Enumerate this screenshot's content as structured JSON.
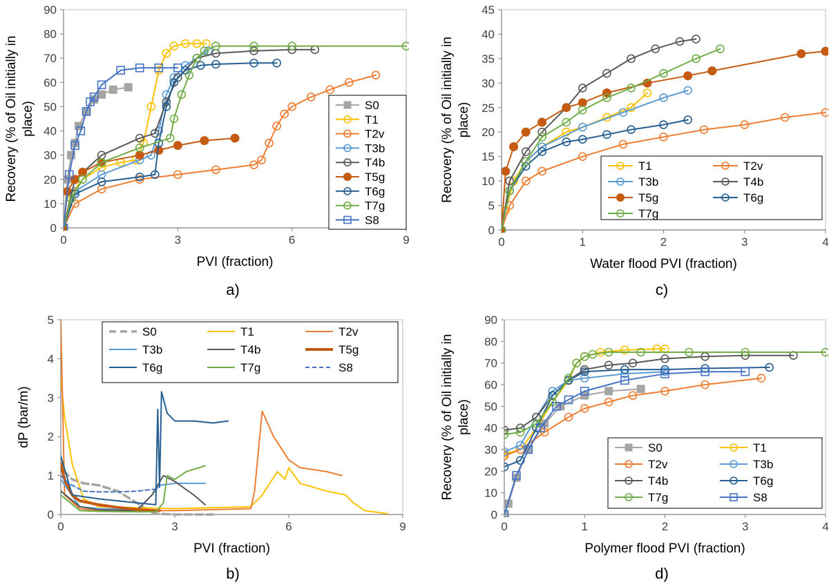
{
  "figure": {
    "panel_labels": [
      "a)",
      "b)",
      "c)",
      "d)"
    ]
  },
  "styles": {
    "S0": {
      "color": "#A5A5A5",
      "marker": "square-filled"
    },
    "T1": {
      "color": "#FFC000",
      "marker": "circle-open"
    },
    "T2v": {
      "color": "#ED7D31",
      "marker": "circle-open"
    },
    "T3b": {
      "color": "#5B9BD5",
      "marker": "circle-open"
    },
    "T4b": {
      "color": "#595959",
      "marker": "circle-open"
    },
    "T5g": {
      "color": "#C55A11",
      "marker": "circle-filled"
    },
    "T6g": {
      "color": "#255E91",
      "marker": "circle-open"
    },
    "T7g": {
      "color": "#70AD47",
      "marker": "circle-open"
    },
    "S8": {
      "color": "#4472C4",
      "marker": "square-open"
    }
  },
  "chart_data": [
    {
      "panel": "a)",
      "type": "line",
      "xlabel": "PVI (fraction)",
      "ylabel": "Recovery (% of Oil initially in place)",
      "xlim": [
        0,
        9
      ],
      "ylim": [
        0,
        90
      ],
      "xticks": [
        0,
        3,
        6,
        9
      ],
      "yticks": [
        0,
        10,
        20,
        30,
        40,
        50,
        60,
        70,
        80,
        90
      ],
      "legend": [
        "S0",
        "T1",
        "T2v",
        "T3b",
        "T4b",
        "T5g",
        "T6g",
        "T7g",
        "S8"
      ],
      "series": [
        {
          "name": "S0",
          "x": [
            0,
            0.1,
            0.2,
            0.3,
            0.4,
            0.6,
            0.8,
            1.0,
            1.3,
            1.7
          ],
          "y": [
            0,
            20,
            30,
            35,
            42,
            48,
            53,
            55,
            57,
            58
          ]
        },
        {
          "name": "T1",
          "x": [
            0,
            0.2,
            0.5,
            1.0,
            1.5,
            1.9,
            2.1,
            2.3,
            2.5,
            2.7,
            2.9,
            3.2,
            3.5,
            3.75
          ],
          "y": [
            0,
            14,
            20,
            25,
            27,
            28,
            35,
            50,
            65,
            72,
            75,
            76,
            76,
            76
          ]
        },
        {
          "name": "T2v",
          "x": [
            0,
            0.3,
            1.0,
            2.0,
            3.0,
            4.0,
            5.0,
            5.2,
            5.4,
            5.6,
            5.8,
            6.0,
            6.5,
            7.0,
            7.5,
            8.2
          ],
          "y": [
            0,
            10,
            16,
            20,
            22,
            24,
            26,
            28,
            35,
            42,
            47,
            50,
            54,
            57,
            60,
            63
          ]
        },
        {
          "name": "T3b",
          "x": [
            0,
            0.3,
            1.0,
            2.0,
            2.3,
            2.5,
            2.7,
            2.9,
            3.2,
            3.5,
            3.8
          ],
          "y": [
            0,
            15,
            22,
            28,
            30,
            40,
            55,
            62,
            67,
            70,
            73
          ]
        },
        {
          "name": "T4b",
          "x": [
            0,
            0.3,
            1.0,
            2.0,
            2.4,
            2.7,
            3.0,
            3.5,
            4.0,
            5.0,
            6.0,
            6.6
          ],
          "y": [
            0,
            20,
            30,
            37,
            39,
            52,
            62,
            70,
            72,
            73,
            73.5,
            73.5
          ]
        },
        {
          "name": "T5g",
          "x": [
            0,
            0.1,
            0.3,
            0.5,
            1.0,
            2.0,
            2.5,
            3.0,
            3.7,
            4.5
          ],
          "y": [
            0,
            15,
            20,
            23,
            27,
            30,
            32,
            34,
            36,
            37
          ]
        },
        {
          "name": "T6g",
          "x": [
            0,
            0.3,
            1.0,
            2.0,
            2.4,
            2.5,
            2.7,
            2.9,
            3.2,
            3.6,
            4.0,
            5.0,
            5.6
          ],
          "y": [
            0,
            14,
            19,
            21,
            22,
            35,
            50,
            60,
            65,
            67,
            67.5,
            68,
            68
          ]
        },
        {
          "name": "T7g",
          "x": [
            0,
            0.2,
            0.5,
            1.0,
            2.0,
            2.8,
            2.9,
            3.1,
            3.3,
            3.5,
            3.7,
            4.0,
            5.0,
            6.0,
            9.0
          ],
          "y": [
            0,
            12,
            20,
            27,
            33,
            37,
            45,
            55,
            63,
            70,
            73,
            75,
            75,
            75,
            75
          ]
        },
        {
          "name": "S8",
          "x": [
            0,
            0.15,
            0.3,
            0.45,
            0.6,
            0.7,
            0.8,
            1.0,
            1.5,
            2.0,
            2.5,
            3.0
          ],
          "y": [
            0,
            22,
            34,
            40,
            48,
            52,
            54,
            59,
            65,
            66,
            66,
            66
          ]
        }
      ]
    },
    {
      "panel": "b)",
      "type": "line",
      "xlabel": "PVI (fraction)",
      "ylabel": "dP (bar/m)",
      "xlim": [
        0,
        9
      ],
      "ylim": [
        0,
        5
      ],
      "xticks": [
        0,
        3,
        6,
        9
      ],
      "yticks": [
        0,
        1,
        2,
        3,
        4,
        5
      ],
      "legend": [
        "S0",
        "T1",
        "T2v",
        "T3b",
        "T4b",
        "T5g",
        "T6g",
        "T7g",
        "S8"
      ],
      "series": [
        {
          "name": "S0",
          "x": [
            0,
            0.1,
            0.3,
            0.6,
            1.0,
            1.5,
            2.0,
            2.3,
            2.5,
            3.0,
            4.0
          ],
          "y": [
            1.4,
            1.1,
            0.9,
            0.8,
            0.75,
            0.6,
            0.3,
            0.1,
            0.02,
            0,
            0
          ]
        },
        {
          "name": "T1",
          "x": [
            0,
            0.1,
            0.3,
            0.6,
            1.0,
            3.0,
            5.0,
            5.3,
            5.7,
            5.9,
            6.0,
            6.3,
            7.0,
            7.5,
            7.7,
            8.0,
            8.6
          ],
          "y": [
            3.5,
            2.5,
            1.3,
            0.4,
            0.2,
            0.15,
            0.2,
            0.5,
            1.1,
            0.9,
            1.2,
            0.8,
            0.6,
            0.5,
            0.3,
            0.1,
            0.02
          ]
        },
        {
          "name": "T2v",
          "x": [
            0,
            0.1,
            0.5,
            1.0,
            3.0,
            5.0,
            5.1,
            5.3,
            5.6,
            6.0,
            6.3,
            7.0,
            7.4
          ],
          "y": [
            5.0,
            0.5,
            0.15,
            0.1,
            0.1,
            0.15,
            0.6,
            2.65,
            2.0,
            1.4,
            1.2,
            1.1,
            1.0
          ]
        },
        {
          "name": "T3b",
          "x": [
            0,
            0.5,
            1.0,
            2.0,
            2.4,
            2.6,
            3.0,
            3.8
          ],
          "y": [
            0.9,
            0.2,
            0.15,
            0.12,
            0.5,
            0.75,
            0.8,
            0.8
          ]
        },
        {
          "name": "T4b",
          "x": [
            0,
            0.5,
            1.0,
            2.0,
            2.4,
            2.7,
            3.0,
            3.5,
            3.8
          ],
          "y": [
            0.6,
            0.2,
            0.12,
            0.1,
            0.5,
            1.0,
            0.85,
            0.5,
            0.25
          ]
        },
        {
          "name": "T5g",
          "x": [
            0,
            0.1,
            0.3,
            0.5,
            1.0,
            1.5,
            2.0,
            2.5,
            2.6
          ],
          "y": [
            1.3,
            0.9,
            0.5,
            0.35,
            0.25,
            0.18,
            0.13,
            0.1,
            0.1
          ]
        },
        {
          "name": "T6g",
          "x": [
            0,
            0.3,
            1.0,
            2.0,
            2.5,
            2.55,
            2.6,
            2.65,
            2.8,
            3.0,
            3.5,
            4.0,
            4.4
          ],
          "y": [
            1.5,
            0.5,
            0.4,
            0.3,
            0.25,
            2.7,
            0.7,
            3.15,
            2.6,
            2.4,
            2.4,
            2.35,
            2.4
          ]
        },
        {
          "name": "T7g",
          "x": [
            0,
            0.5,
            1.0,
            2.0,
            2.5,
            2.7,
            2.8,
            3.0,
            3.3,
            3.8
          ],
          "y": [
            0.5,
            0.1,
            0.08,
            0.07,
            0.07,
            0.3,
            1.0,
            0.9,
            1.1,
            1.25
          ]
        },
        {
          "name": "S8",
          "x": [
            0,
            0.2,
            0.6,
            1.0,
            1.5,
            2.0,
            2.5
          ],
          "y": [
            1.0,
            0.8,
            0.6,
            0.58,
            0.58,
            0.6,
            0.65
          ]
        }
      ]
    },
    {
      "panel": "c)",
      "type": "line",
      "xlabel": "Water flood PVI (fraction)",
      "ylabel": "Recovery (% of Oil initially in place)",
      "xlim": [
        0,
        4
      ],
      "ylim": [
        0,
        45
      ],
      "xticks": [
        0,
        1,
        2,
        3,
        4
      ],
      "yticks": [
        0,
        5,
        10,
        15,
        20,
        25,
        30,
        35,
        40,
        45
      ],
      "legend": [
        "T1",
        "T2v",
        "T3b",
        "T4b",
        "T5g",
        "T6g",
        "T7g"
      ],
      "series": [
        {
          "name": "T1",
          "x": [
            0,
            0.05,
            0.15,
            0.3,
            0.5,
            0.8,
            1.0,
            1.3,
            1.6,
            1.8
          ],
          "y": [
            0,
            4,
            10,
            14,
            17,
            20,
            21,
            23,
            25,
            28
          ]
        },
        {
          "name": "T2v",
          "x": [
            0,
            0.1,
            0.3,
            0.5,
            1.0,
            1.5,
            2.0,
            2.5,
            3.0,
            3.5,
            4.0
          ],
          "y": [
            0,
            5,
            10,
            12,
            15,
            17.5,
            19,
            20.5,
            21.5,
            23,
            24
          ]
        },
        {
          "name": "T3b",
          "x": [
            0,
            0.1,
            0.3,
            0.5,
            1.0,
            1.5,
            2.0,
            2.3
          ],
          "y": [
            0,
            8,
            14,
            17,
            21,
            24,
            27,
            28.5
          ]
        },
        {
          "name": "T4b",
          "x": [
            0,
            0.1,
            0.3,
            0.5,
            0.8,
            1.0,
            1.3,
            1.6,
            1.9,
            2.2,
            2.4
          ],
          "y": [
            0,
            10,
            16,
            20,
            25,
            29,
            32,
            35,
            37,
            38.5,
            39
          ]
        },
        {
          "name": "T5g",
          "x": [
            0,
            0.05,
            0.15,
            0.3,
            0.5,
            0.8,
            1.0,
            1.3,
            1.8,
            2.3,
            2.6,
            3.7,
            4.0
          ],
          "y": [
            0,
            12,
            17,
            20,
            22,
            25,
            26,
            28,
            30,
            31.5,
            32.5,
            36,
            36.5
          ]
        },
        {
          "name": "T6g",
          "x": [
            0,
            0.1,
            0.3,
            0.5,
            0.8,
            1.0,
            1.3,
            1.6,
            2.0,
            2.3
          ],
          "y": [
            0,
            8,
            13,
            16,
            18,
            18.5,
            19.5,
            20.5,
            21.5,
            22.5
          ]
        },
        {
          "name": "T7g",
          "x": [
            0,
            0.1,
            0.3,
            0.5,
            0.8,
            1.0,
            1.3,
            1.6,
            2.0,
            2.4,
            2.7
          ],
          "y": [
            0,
            8,
            14,
            19,
            22,
            24.5,
            27,
            29,
            32,
            35,
            37
          ]
        }
      ]
    },
    {
      "panel": "d)",
      "type": "line",
      "xlabel": "Polymer flood PVI (fraction)",
      "ylabel": "Recovery (% of Oil initially in place)",
      "xlim": [
        0,
        4
      ],
      "ylim": [
        0,
        90
      ],
      "xticks": [
        0,
        1,
        2,
        3,
        4
      ],
      "yticks": [
        0,
        10,
        20,
        30,
        40,
        50,
        60,
        70,
        80,
        90
      ],
      "legend": [
        "S0",
        "T1",
        "T2v",
        "T3b",
        "T4b",
        "T6g",
        "T7g",
        "S8"
      ],
      "series": [
        {
          "name": "S0",
          "x": [
            0,
            0.05,
            0.15,
            0.3,
            0.5,
            0.7,
            1.0,
            1.3,
            1.7
          ],
          "y": [
            0,
            5,
            17,
            30,
            42,
            50,
            55,
            57,
            58
          ]
        },
        {
          "name": "T1",
          "x": [
            0,
            0.2,
            0.4,
            0.6,
            0.8,
            0.9,
            1.0,
            1.2,
            1.5,
            1.9,
            2.0
          ],
          "y": [
            28,
            30,
            40,
            52,
            62,
            70,
            73,
            75,
            76,
            76.5,
            76.5
          ]
        },
        {
          "name": "T2v",
          "x": [
            0,
            0.2,
            0.5,
            0.8,
            1.0,
            1.3,
            1.6,
            2.0,
            2.5,
            3.2
          ],
          "y": [
            27,
            30,
            38,
            45,
            49,
            52,
            55,
            57,
            60,
            63
          ]
        },
        {
          "name": "T3b",
          "x": [
            0,
            0.2,
            0.4,
            0.6,
            0.8,
            1.0,
            1.5,
            2.0
          ],
          "y": [
            29,
            32,
            45,
            57,
            62,
            63,
            65,
            66
          ]
        },
        {
          "name": "T4b",
          "x": [
            0,
            0.2,
            0.4,
            0.6,
            0.8,
            1.0,
            1.3,
            1.6,
            2.0,
            2.5,
            3.0,
            3.6
          ],
          "y": [
            39,
            40,
            45,
            55,
            62,
            67,
            69,
            70,
            72,
            73,
            73.5,
            73.5
          ]
        },
        {
          "name": "T6g",
          "x": [
            0,
            0.2,
            0.4,
            0.6,
            0.8,
            1.0,
            1.5,
            2.0,
            2.5,
            3.3
          ],
          "y": [
            22,
            25,
            40,
            55,
            62,
            66,
            67,
            67,
            67.5,
            68
          ]
        },
        {
          "name": "T7g",
          "x": [
            0,
            0.2,
            0.4,
            0.6,
            0.8,
            0.9,
            1.0,
            1.1,
            1.3,
            1.7,
            2.3,
            3.0,
            4.0
          ],
          "y": [
            37,
            38,
            42,
            52,
            63,
            70,
            73,
            74,
            75,
            75,
            75,
            75,
            75
          ]
        },
        {
          "name": "S8",
          "x": [
            0,
            0.15,
            0.3,
            0.45,
            0.65,
            0.8,
            1.0,
            1.5,
            2.0,
            2.5,
            3.0
          ],
          "y": [
            0,
            18,
            30,
            40,
            50,
            53,
            57,
            62,
            65,
            66,
            66
          ]
        }
      ]
    }
  ]
}
